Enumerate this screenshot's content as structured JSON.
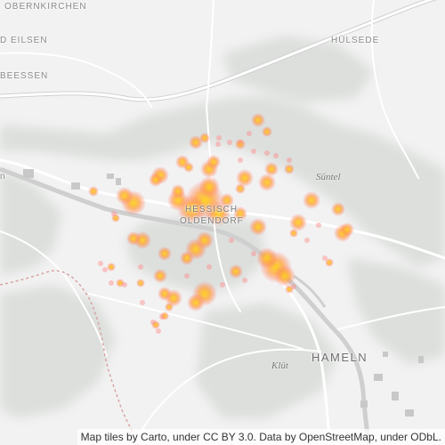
{
  "map": {
    "labels": {
      "obernkirchen": "OBERNKIRCHEN",
      "eilsen": "D EILSEN",
      "huelsede": "HÜLSEDE",
      "beessen": "BEESSEN",
      "hessisch": "HESSISCH",
      "oldendorf": "OLDENDORF",
      "hameln": "HAMELN",
      "suentel": "Süntel",
      "kluet": "Klüt",
      "edge_n": "n"
    },
    "attribution": "Map tiles by Carto, under CC BY 3.0. Data by OpenStreetMap, under ODbL.",
    "colors": {
      "background": "#f2f2f2",
      "hills": "#dfe2df",
      "roads": "#ffffff",
      "road_casing": "#d6d6d6",
      "water": "#cfcfcf",
      "border": "#d9a3a3",
      "heat_core": "#ffd21a",
      "heat_mid": "#ff9e3d",
      "heat_edge": "#ff7373"
    }
  }
}
